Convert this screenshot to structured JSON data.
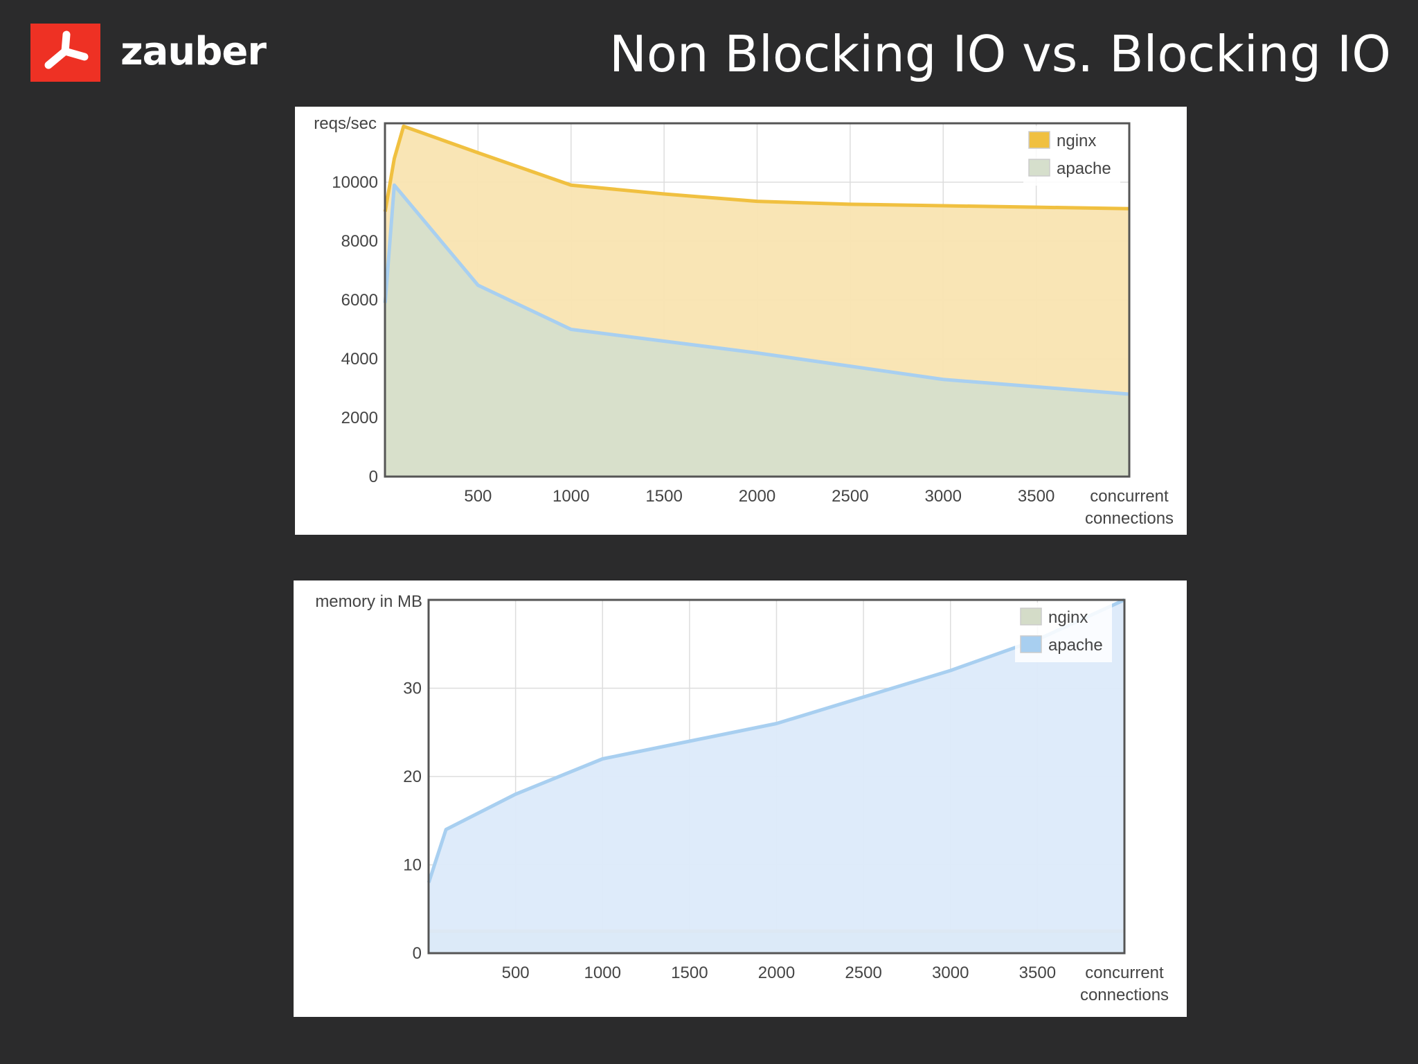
{
  "header": {
    "logo_text": "zauber",
    "title": "Non Blocking IO vs. Blocking IO"
  },
  "colors": {
    "background": "#2b2b2c",
    "logo_red": "#ee3124",
    "nginx_throughput": "#f0c040",
    "apache": "#a8cff0",
    "nginx_memory": "#d4dcc8"
  },
  "chart_data": [
    {
      "type": "area",
      "ylabel": "reqs/sec",
      "xlabel": [
        "concurrent",
        "connections"
      ],
      "xlim": [
        0,
        4000
      ],
      "ylim": [
        0,
        12000
      ],
      "x_ticks": [
        500,
        1000,
        1500,
        2000,
        2500,
        3000,
        3500
      ],
      "y_ticks": [
        0,
        2000,
        4000,
        6000,
        8000,
        10000
      ],
      "legend_position": "top-right",
      "grid": true,
      "series": [
        {
          "name": "nginx",
          "color": "#f0c040",
          "fill": "#f9e4b1",
          "x": [
            1,
            50,
            100,
            500,
            1000,
            1500,
            2000,
            2500,
            3000,
            3500,
            4000
          ],
          "y": [
            9000,
            10800,
            11900,
            11000,
            9900,
            9600,
            9350,
            9250,
            9200,
            9150,
            9100
          ]
        },
        {
          "name": "apache",
          "color": "#a8cff0",
          "fill": "#d6dfcc",
          "x": [
            1,
            50,
            500,
            1000,
            1500,
            2000,
            2500,
            3000,
            3500,
            4000
          ],
          "y": [
            5900,
            9900,
            6500,
            5000,
            4600,
            4200,
            3750,
            3300,
            3050,
            2800
          ]
        }
      ]
    },
    {
      "type": "area",
      "ylabel": "memory in MB",
      "xlabel": [
        "concurrent",
        "connections"
      ],
      "xlim": [
        0,
        4000
      ],
      "ylim": [
        0,
        40
      ],
      "x_ticks": [
        500,
        1000,
        1500,
        2000,
        2500,
        3000,
        3500
      ],
      "y_ticks": [
        0,
        10,
        20,
        30
      ],
      "legend_position": "top-right",
      "grid": true,
      "series": [
        {
          "name": "nginx",
          "color": "#e8c870",
          "fill": "#d4dcc8",
          "x": [
            1,
            500,
            1000,
            1500,
            2000,
            2500,
            3000,
            3500,
            4000
          ],
          "y": [
            2.5,
            2.5,
            2.5,
            2.5,
            2.5,
            2.5,
            2.5,
            2.5,
            2.5
          ]
        },
        {
          "name": "apache",
          "color": "#a8cff0",
          "fill": "#dceafa",
          "x": [
            1,
            100,
            500,
            1000,
            1500,
            2000,
            2500,
            3000,
            3500,
            4000
          ],
          "y": [
            8,
            14,
            18,
            22,
            24,
            26,
            29,
            32,
            35.5,
            40
          ]
        }
      ]
    }
  ]
}
